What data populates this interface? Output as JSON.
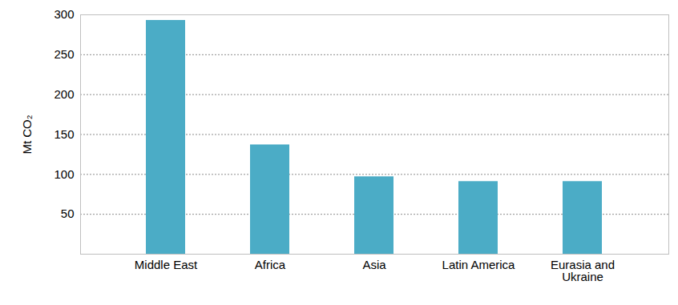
{
  "chart_data": {
    "type": "bar",
    "y_label": "Mt CO₂",
    "categories": [
      "Middle East",
      "Africa",
      "Asia",
      "Latin America",
      "Eurasia and Ukraine"
    ],
    "values": [
      293,
      137,
      97,
      91,
      91
    ],
    "color": "#4bacc6",
    "ylim": [
      0,
      300
    ],
    "yticks": [
      50,
      100,
      150,
      200,
      250,
      300
    ],
    "grid": true
  }
}
